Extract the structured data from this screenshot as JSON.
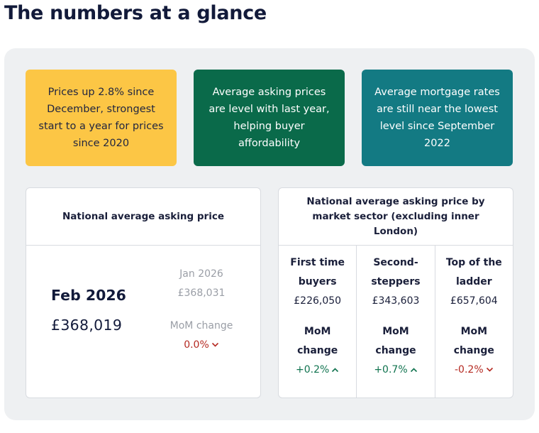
{
  "page_title": "The numbers at a glance",
  "highlights": [
    {
      "text": "Prices up 2.8% since December, strongest start to a year for prices since 2020",
      "color": "#fcc645"
    },
    {
      "text": "Average asking prices are level with last year, helping buyer affordability",
      "color": "#0a6a4a"
    },
    {
      "text": "Average mortgage rates are still near the lowest level since September 2022",
      "color": "#137a83"
    }
  ],
  "national": {
    "title": "National average asking price",
    "current_month": "Feb 2026",
    "current_value": "£368,019",
    "prev_month": "Jan 2026",
    "prev_value": "£368,031",
    "mom_label": "MoM change",
    "mom_change": "0.0%",
    "mom_direction": "down"
  },
  "sector": {
    "title": "National average asking price by market sector (excluding inner London)",
    "mom_label_line1": "MoM",
    "mom_label_line2": "change",
    "columns": [
      {
        "name_line1": "First time",
        "name_line2": "buyers",
        "price": "£226,050",
        "change": "+0.2%",
        "direction": "up"
      },
      {
        "name_line1": "Second-",
        "name_line2": "steppers",
        "price": "£343,603",
        "change": "+0.7%",
        "direction": "up"
      },
      {
        "name_line1": "Top of the",
        "name_line2": "ladder",
        "price": "£657,604",
        "change": "-0.2%",
        "direction": "down"
      }
    ]
  },
  "colors": {
    "up": "#10734f",
    "down": "#b52a22",
    "panel": "#eef0f2"
  }
}
